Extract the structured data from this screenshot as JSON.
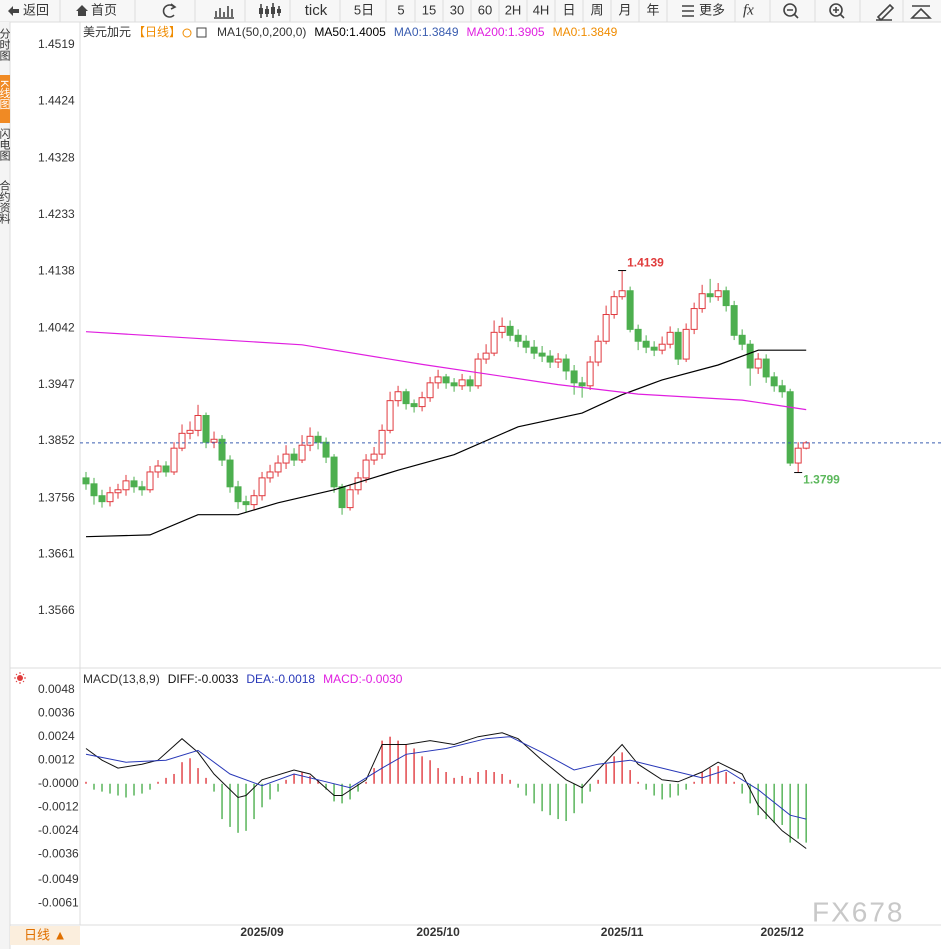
{
  "toolbar": {
    "buttons": [
      "返回",
      "首页",
      "tick",
      "5日",
      "5",
      "15",
      "30",
      "60",
      "2H",
      "4H",
      "日",
      "周",
      "月",
      "年",
      "更多"
    ]
  },
  "sidebar": {
    "tabs": [
      "分时图",
      "K线图",
      "闪电图",
      "合约资料"
    ]
  },
  "footer": {
    "tab": "日线 ▲",
    "watermark": "FX678"
  },
  "chart_data": [
    {
      "type": "candlestick",
      "title": "美元加元",
      "period": "【日线】",
      "indicator": "MA1(50,0,200,0)",
      "up_color": "#e0393e",
      "down_color": "#4daf4f",
      "open": [
        1.379,
        1.378,
        1.376,
        1.375,
        1.3765,
        1.377,
        1.3785,
        1.3775,
        1.377,
        1.38,
        1.381,
        1.38,
        1.384,
        1.3865,
        1.387,
        1.3895,
        1.385,
        1.3855,
        1.382,
        1.3775,
        1.375,
        1.3745,
        1.376,
        1.379,
        1.38,
        1.3815,
        1.383,
        1.382,
        1.3845,
        1.386,
        1.385,
        1.3825,
        1.3775,
        1.374,
        1.377,
        1.379,
        1.382,
        1.383,
        1.387,
        1.392,
        1.3935,
        1.3915,
        1.391,
        1.3925,
        1.395,
        1.396,
        1.395,
        1.3945,
        1.3955,
        1.3945,
        1.399,
        1.4,
        1.4035,
        1.4045,
        1.403,
        1.402,
        1.401,
        1.4,
        1.3995,
        1.3985,
        1.399,
        1.397,
        1.395,
        1.3945,
        1.3985,
        1.402,
        1.4065,
        1.4095,
        1.4105,
        1.404,
        1.402,
        1.401,
        1.4005,
        1.4015,
        1.4035,
        1.399,
        1.404,
        1.4075,
        1.41,
        1.4095,
        1.4105,
        1.408,
        1.403,
        1.4015,
        1.3975,
        1.399,
        1.396,
        1.3945,
        1.3935,
        1.3815,
        1.384
      ],
      "high": [
        1.38,
        1.379,
        1.377,
        1.3775,
        1.378,
        1.3795,
        1.3792,
        1.3785,
        1.381,
        1.382,
        1.3818,
        1.385,
        1.388,
        1.3885,
        1.3913,
        1.39,
        1.3868,
        1.3862,
        1.3828,
        1.3785,
        1.376,
        1.377,
        1.38,
        1.3812,
        1.3828,
        1.3845,
        1.384,
        1.3862,
        1.3875,
        1.3868,
        1.3858,
        1.383,
        1.378,
        1.3778,
        1.38,
        1.383,
        1.3842,
        1.388,
        1.3935,
        1.3945,
        1.394,
        1.3922,
        1.3935,
        1.396,
        1.3972,
        1.3965,
        1.3958,
        1.3965,
        1.3962,
        1.4,
        1.4015,
        1.4055,
        1.406,
        1.4055,
        1.404,
        1.403,
        1.4022,
        1.4012,
        1.4005,
        1.4,
        1.3998,
        1.398,
        1.396,
        1.3995,
        1.403,
        1.408,
        1.4105,
        1.4139,
        1.4112,
        1.4048,
        1.403,
        1.402,
        1.4028,
        1.4045,
        1.4042,
        1.405,
        1.4085,
        1.4115,
        1.4125,
        1.4118,
        1.4112,
        1.4088,
        1.404,
        1.4022,
        1.4,
        1.3998,
        1.3968,
        1.3955,
        1.394,
        1.385,
        1.3852
      ],
      "low": [
        1.377,
        1.3745,
        1.374,
        1.3742,
        1.3755,
        1.376,
        1.3765,
        1.376,
        1.3765,
        1.379,
        1.3792,
        1.3795,
        1.3835,
        1.3855,
        1.386,
        1.384,
        1.384,
        1.381,
        1.3765,
        1.3738,
        1.3732,
        1.3735,
        1.3752,
        1.3782,
        1.3792,
        1.3805,
        1.381,
        1.3815,
        1.3835,
        1.3838,
        1.3815,
        1.3765,
        1.3728,
        1.3735,
        1.3762,
        1.3782,
        1.3812,
        1.3822,
        1.3865,
        1.391,
        1.3905,
        1.39,
        1.3902,
        1.3918,
        1.394,
        1.394,
        1.3935,
        1.3938,
        1.3935,
        1.394,
        1.3982,
        1.3995,
        1.4025,
        1.402,
        1.401,
        1.4,
        1.399,
        1.3985,
        1.3975,
        1.3975,
        1.3955,
        1.393,
        1.3925,
        1.3938,
        1.3978,
        1.4015,
        1.4058,
        1.409,
        1.4035,
        1.4005,
        1.4,
        1.3995,
        1.3998,
        1.4008,
        1.398,
        1.3985,
        1.4032,
        1.4068,
        1.4085,
        1.4088,
        1.407,
        1.4022,
        1.4005,
        1.3945,
        1.3965,
        1.395,
        1.3935,
        1.3925,
        1.381,
        1.3799,
        1.3838
      ],
      "close": [
        1.378,
        1.376,
        1.375,
        1.3765,
        1.377,
        1.3785,
        1.3775,
        1.377,
        1.38,
        1.381,
        1.38,
        1.384,
        1.3865,
        1.387,
        1.3895,
        1.385,
        1.3855,
        1.382,
        1.3775,
        1.375,
        1.3745,
        1.376,
        1.379,
        1.38,
        1.3815,
        1.383,
        1.382,
        1.3845,
        1.386,
        1.385,
        1.3825,
        1.3775,
        1.374,
        1.377,
        1.379,
        1.382,
        1.383,
        1.387,
        1.392,
        1.3935,
        1.3915,
        1.391,
        1.3925,
        1.395,
        1.396,
        1.395,
        1.3945,
        1.3955,
        1.3945,
        1.399,
        1.4,
        1.4035,
        1.4045,
        1.403,
        1.402,
        1.401,
        1.4,
        1.3995,
        1.3985,
        1.399,
        1.397,
        1.395,
        1.3945,
        1.3985,
        1.402,
        1.4065,
        1.4095,
        1.4105,
        1.404,
        1.402,
        1.401,
        1.4005,
        1.4015,
        1.4035,
        1.399,
        1.404,
        1.4075,
        1.41,
        1.4095,
        1.4105,
        1.408,
        1.403,
        1.4015,
        1.3975,
        1.399,
        1.396,
        1.3945,
        1.3935,
        1.3815,
        1.384,
        1.3849
      ],
      "series": [
        {
          "name": "MA50:1.4005",
          "color": "#000000",
          "x": [
            0,
            8,
            14,
            19,
            24,
            31,
            39,
            46,
            54,
            62,
            67,
            72,
            79,
            84,
            90
          ],
          "values": [
            1.3691,
            1.3694,
            1.3728,
            1.3728,
            1.3748,
            1.377,
            1.3803,
            1.3829,
            1.3876,
            1.3899,
            1.393,
            1.3955,
            1.398,
            1.4005,
            1.4005
          ]
        },
        {
          "name": "MA0:1.3849",
          "color": "#3a5db0",
          "values": [
            1.3849
          ],
          "dashed": true
        },
        {
          "name": "MA200:1.3905",
          "color": "#e01fe0",
          "x": [
            0,
            27,
            42,
            59,
            69,
            82,
            90
          ],
          "values": [
            1.4036,
            1.4014,
            1.3981,
            1.3947,
            1.3931,
            1.3921,
            1.3905
          ]
        },
        {
          "name": "MA0:1.3849",
          "color": "#f08c00"
        }
      ],
      "annotations": [
        {
          "label": 1.4139,
          "color": "#e03c3c"
        },
        {
          "label": 1.3799,
          "color": "#5cb85c"
        }
      ],
      "xlim": [
        -0.75,
        106.85
      ],
      "ylim": [
        1.347,
        1.4554
      ],
      "yticks": [
        1.4519,
        1.4424,
        1.4328,
        1.4233,
        1.4138,
        1.4042,
        1.3947,
        1.3852,
        1.3756,
        1.3661,
        1.3566
      ],
      "grid": false
    },
    {
      "type": "macd",
      "title": "MACD(13,8,9)",
      "series": [
        {
          "name": "DIFF:-0.0033",
          "color": "#111111",
          "x": [
            0,
            2,
            4,
            7,
            9,
            12,
            14,
            16,
            19,
            20,
            22,
            26,
            28,
            31,
            32,
            35,
            37,
            40,
            43,
            46,
            49,
            52,
            54,
            57,
            60,
            62,
            64,
            67,
            69,
            72,
            74,
            77,
            79,
            82,
            84,
            87,
            90
          ],
          "values": [
            0.0018,
            0.0012,
            0.0008,
            0.001,
            0.0012,
            0.0023,
            0.0016,
            0.0005,
            -0.0007,
            -0.0006,
            0.0002,
            0.0007,
            0.0005,
            -0.0006,
            -0.0006,
            0.0002,
            0.002,
            0.002,
            0.0022,
            0.002,
            0.0024,
            0.0026,
            0.0023,
            0.0012,
            0.0002,
            -0.0002,
            0.0007,
            0.002,
            0.001,
            0.0002,
            0.0001,
            0.0006,
            0.0011,
            0.0005,
            -0.0011,
            -0.0024,
            -0.0033
          ]
        },
        {
          "name": "DEA:-0.0018",
          "color": "#2838b8",
          "x": [
            0,
            5,
            10,
            14,
            18,
            22,
            26,
            29,
            33,
            37,
            40,
            45,
            50,
            53,
            57,
            61,
            64,
            68,
            72,
            77,
            80,
            84,
            88,
            90
          ],
          "values": [
            0.0015,
            0.0011,
            0.0012,
            0.0017,
            0.0005,
            -0.0001,
            0.0005,
            0.0002,
            -0.0002,
            0.0008,
            0.0015,
            0.0018,
            0.0023,
            0.0024,
            0.0016,
            0.0007,
            0.001,
            0.0012,
            0.0008,
            0.0003,
            0.0007,
            -0.0003,
            -0.0016,
            -0.0018
          ]
        }
      ],
      "histogram": {
        "name": "MACD:-0.0030",
        "color": "#e020e0",
        "up_color": "#e0393e",
        "down_color": "#4daf4f",
        "values": [
          0.0001,
          -0.0003,
          -0.0004,
          -0.0005,
          -0.0006,
          -0.0007,
          -0.0006,
          -0.0005,
          -0.0003,
          0.0001,
          0.0003,
          0.0005,
          0.0011,
          0.0013,
          0.0008,
          0.0003,
          -0.0004,
          -0.0018,
          -0.0022,
          -0.0025,
          -0.0024,
          -0.0018,
          -0.0012,
          -0.0008,
          -0.0004,
          0.0002,
          0.0005,
          0.0006,
          0.0004,
          0.0002,
          -0.0003,
          -0.0009,
          -0.001,
          -0.0008,
          -0.0004,
          0.0001,
          0.0008,
          0.0022,
          0.0024,
          0.0022,
          0.002,
          0.0018,
          0.0014,
          0.0012,
          0.0008,
          0.0006,
          0.0003,
          0.0004,
          0.0003,
          0.0006,
          0.0007,
          0.0006,
          0.0005,
          0.0002,
          -0.0002,
          -0.0006,
          -0.001,
          -0.0014,
          -0.0016,
          -0.0018,
          -0.0019,
          -0.0015,
          -0.001,
          -0.0004,
          0.0002,
          0.001,
          0.0014,
          0.0016,
          0.0007,
          0.0001,
          -0.0003,
          -0.0006,
          -0.0008,
          -0.0007,
          -0.0006,
          -0.0003,
          0.0001,
          0.0006,
          0.0008,
          0.0009,
          0.0006,
          0.0001,
          -0.0005,
          -0.001,
          -0.0016,
          -0.0018,
          -0.002,
          -0.0021,
          -0.003,
          -0.0028,
          -0.003
        ]
      },
      "xlim": [
        -0.75,
        106.85
      ],
      "ylim": [
        -0.0072,
        0.0058
      ],
      "yticks": [
        0.0048,
        0.0036,
        0.0024,
        0.0012,
        {
          "value": 0,
          "label": "-0.0000"
        },
        -0.0012,
        -0.0024,
        -0.0036,
        -0.0049,
        -0.0061
      ],
      "xticks": [
        {
          "value": 22,
          "label": "2025/09"
        },
        {
          "value": 44,
          "label": "2025/10"
        },
        {
          "value": 67,
          "label": "2025/11"
        },
        {
          "value": 87,
          "label": "2025/12"
        }
      ]
    }
  ]
}
